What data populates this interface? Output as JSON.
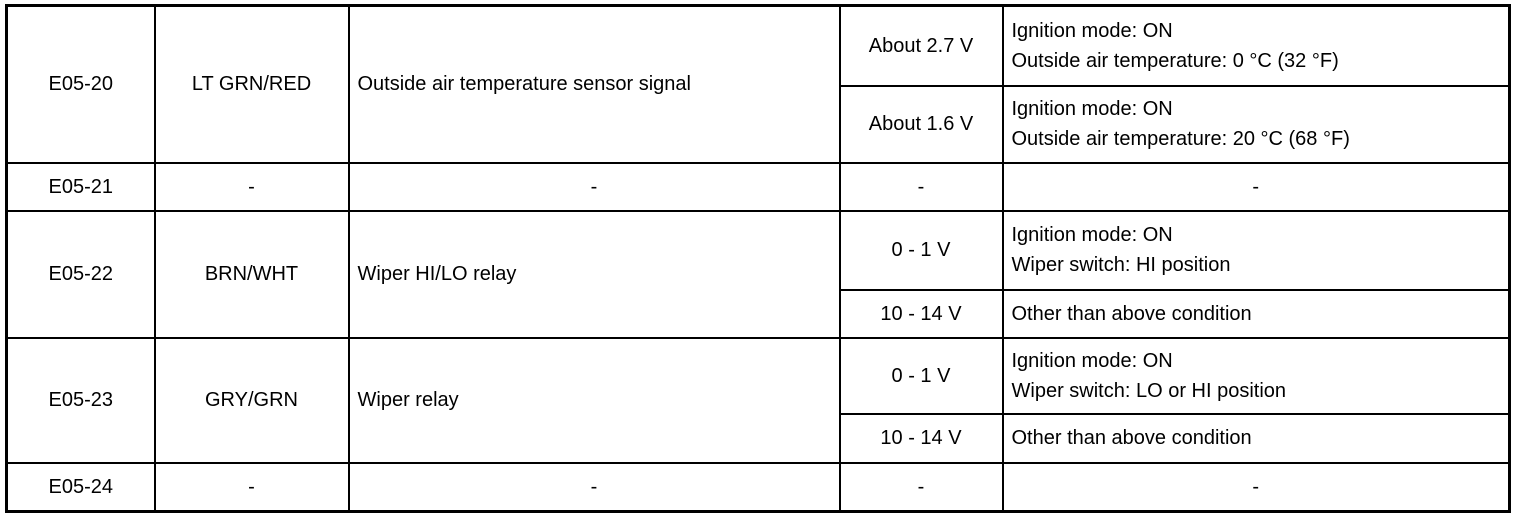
{
  "rows": [
    {
      "terminal": "E05-20",
      "wire": "LT GRN/RED",
      "description": "Outside air temperature sensor signal",
      "conditions": [
        {
          "value": "About 2.7 V",
          "lines": [
            "Ignition mode: ON",
            "Outside air temperature: 0 °C (32 °F)"
          ]
        },
        {
          "value": "About 1.6 V",
          "lines": [
            "Ignition mode: ON",
            "Outside air temperature: 20 °C (68 °F)"
          ]
        }
      ]
    },
    {
      "terminal": "E05-21",
      "wire": "-",
      "description": "-",
      "conditions": [
        {
          "value": "-",
          "lines": [
            "-"
          ]
        }
      ]
    },
    {
      "terminal": "E05-22",
      "wire": "BRN/WHT",
      "description": "Wiper HI/LO relay",
      "conditions": [
        {
          "value": "0 - 1 V",
          "lines": [
            "Ignition mode: ON",
            "Wiper switch: HI position"
          ]
        },
        {
          "value": "10 - 14 V",
          "lines": [
            "Other than above condition"
          ]
        }
      ]
    },
    {
      "terminal": "E05-23",
      "wire": "GRY/GRN",
      "description": "Wiper relay",
      "conditions": [
        {
          "value": "0 - 1 V",
          "lines": [
            "Ignition mode: ON",
            "Wiper switch: LO or HI position"
          ]
        },
        {
          "value": "10 - 14 V",
          "lines": [
            "Other than above condition"
          ]
        }
      ]
    },
    {
      "terminal": "E05-24",
      "wire": "-",
      "description": "-",
      "conditions": [
        {
          "value": "-",
          "lines": [
            "-"
          ]
        }
      ]
    }
  ]
}
